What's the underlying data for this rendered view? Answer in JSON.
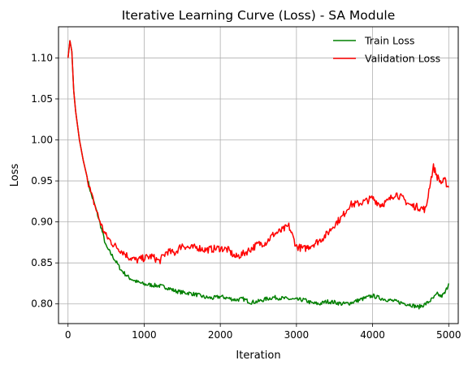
{
  "chart_data": {
    "type": "line",
    "title": "Iterative Learning Curve (Loss) - SA Module",
    "xlabel": "Iteration",
    "ylabel": "Loss",
    "xlim": [
      -125,
      5125
    ],
    "ylim": [
      0.776,
      1.138
    ],
    "xticks": [
      0,
      1000,
      2000,
      3000,
      4000,
      5000
    ],
    "xtick_labels": [
      "0",
      "1000",
      "2000",
      "3000",
      "4000",
      "5000"
    ],
    "yticks": [
      0.8,
      0.85,
      0.9,
      0.95,
      1.0,
      1.05,
      1.1
    ],
    "ytick_labels": [
      "0.80",
      "0.85",
      "0.90",
      "0.95",
      "1.00",
      "1.05",
      "1.10"
    ],
    "grid": true,
    "legend_position": "top-right",
    "series": [
      {
        "name": "Train Loss",
        "color": "#008000",
        "x": [
          0,
          25,
          50,
          75,
          100,
          150,
          200,
          250,
          300,
          350,
          400,
          450,
          500,
          600,
          700,
          800,
          900,
          1000,
          1100,
          1200,
          1300,
          1400,
          1500,
          1600,
          1700,
          1800,
          1900,
          2000,
          2100,
          2200,
          2300,
          2400,
          2500,
          2600,
          2700,
          2800,
          2900,
          3000,
          3100,
          3200,
          3300,
          3400,
          3500,
          3600,
          3700,
          3800,
          3900,
          4000,
          4100,
          4200,
          4300,
          4400,
          4500,
          4600,
          4700,
          4800,
          4850,
          4900,
          4950,
          5000
        ],
        "y": [
          1.1,
          1.121,
          1.108,
          1.06,
          1.035,
          1.0,
          0.975,
          0.955,
          0.935,
          0.921,
          0.905,
          0.888,
          0.87,
          0.856,
          0.841,
          0.832,
          0.827,
          0.824,
          0.823,
          0.822,
          0.82,
          0.816,
          0.814,
          0.813,
          0.811,
          0.808,
          0.807,
          0.809,
          0.807,
          0.805,
          0.806,
          0.802,
          0.803,
          0.806,
          0.808,
          0.807,
          0.806,
          0.805,
          0.805,
          0.801,
          0.8,
          0.803,
          0.802,
          0.8,
          0.801,
          0.804,
          0.807,
          0.81,
          0.807,
          0.805,
          0.803,
          0.801,
          0.799,
          0.796,
          0.8,
          0.807,
          0.812,
          0.809,
          0.813,
          0.825
        ]
      },
      {
        "name": "Validation Loss",
        "color": "#ff0000",
        "x": [
          0,
          25,
          50,
          75,
          100,
          150,
          200,
          250,
          300,
          350,
          400,
          450,
          500,
          600,
          700,
          800,
          900,
          1000,
          1100,
          1200,
          1300,
          1400,
          1500,
          1600,
          1700,
          1800,
          1900,
          2000,
          2100,
          2200,
          2300,
          2400,
          2500,
          2600,
          2700,
          2800,
          2900,
          3000,
          3100,
          3200,
          3300,
          3400,
          3500,
          3600,
          3700,
          3800,
          3900,
          4000,
          4100,
          4200,
          4300,
          4400,
          4500,
          4600,
          4700,
          4750,
          4800,
          4850,
          4900,
          4950,
          5000
        ],
        "y": [
          1.1,
          1.121,
          1.108,
          1.06,
          1.035,
          1.0,
          0.975,
          0.955,
          0.935,
          0.921,
          0.906,
          0.893,
          0.883,
          0.872,
          0.865,
          0.857,
          0.853,
          0.856,
          0.858,
          0.852,
          0.864,
          0.862,
          0.872,
          0.868,
          0.869,
          0.866,
          0.867,
          0.868,
          0.866,
          0.857,
          0.861,
          0.867,
          0.873,
          0.875,
          0.885,
          0.889,
          0.895,
          0.87,
          0.867,
          0.872,
          0.877,
          0.885,
          0.897,
          0.906,
          0.921,
          0.922,
          0.925,
          0.929,
          0.921,
          0.925,
          0.935,
          0.928,
          0.92,
          0.918,
          0.915,
          0.945,
          0.967,
          0.955,
          0.948,
          0.95,
          0.942
        ]
      }
    ]
  }
}
